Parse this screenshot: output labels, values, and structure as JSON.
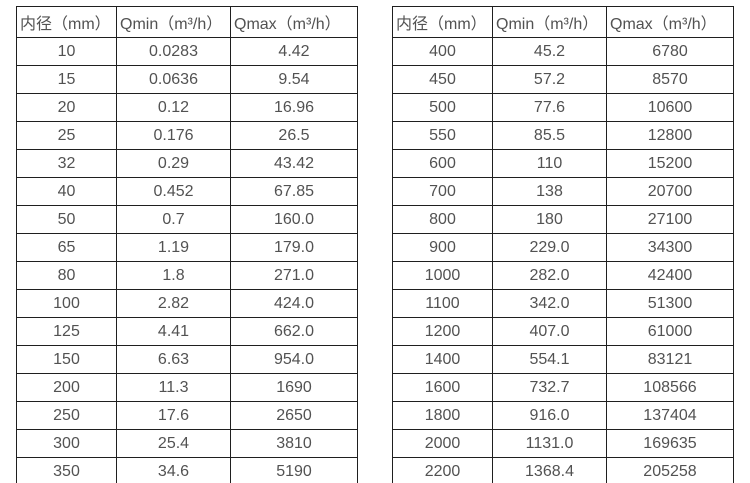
{
  "colors": {
    "background": "#ffffff",
    "text": "#525252",
    "border": "#1f1f1f"
  },
  "tables": [
    {
      "name": "flow-spec-table-small-diameters",
      "headers": [
        "内径（mm）",
        "Qmin（m³/h）",
        "Qmax（m³/h）"
      ],
      "rows": [
        [
          "10",
          "0.0283",
          "4.42"
        ],
        [
          "15",
          "0.0636",
          "9.54"
        ],
        [
          "20",
          "0.12",
          "16.96"
        ],
        [
          "25",
          "0.176",
          "26.5"
        ],
        [
          "32",
          "0.29",
          "43.42"
        ],
        [
          "40",
          "0.452",
          "67.85"
        ],
        [
          "50",
          "0.7",
          "160.0"
        ],
        [
          "65",
          "1.19",
          "179.0"
        ],
        [
          "80",
          "1.8",
          "271.0"
        ],
        [
          "100",
          "2.82",
          "424.0"
        ],
        [
          "125",
          "4.41",
          "662.0"
        ],
        [
          "150",
          "6.63",
          "954.0"
        ],
        [
          "200",
          "11.3",
          "1690"
        ],
        [
          "250",
          "17.6",
          "2650"
        ],
        [
          "300",
          "25.4",
          "3810"
        ],
        [
          "350",
          "34.6",
          "5190"
        ]
      ]
    },
    {
      "name": "flow-spec-table-large-diameters",
      "headers": [
        "内径（mm）",
        "Qmin（m³/h）",
        "Qmax（m³/h）"
      ],
      "rows": [
        [
          "400",
          "45.2",
          "6780"
        ],
        [
          "450",
          "57.2",
          "8570"
        ],
        [
          "500",
          "77.6",
          "10600"
        ],
        [
          "550",
          "85.5",
          "12800"
        ],
        [
          "600",
          "110",
          "15200"
        ],
        [
          "700",
          "138",
          "20700"
        ],
        [
          "800",
          "180",
          "27100"
        ],
        [
          "900",
          "229.0",
          "34300"
        ],
        [
          "1000",
          "282.0",
          "42400"
        ],
        [
          "1100",
          "342.0",
          "51300"
        ],
        [
          "1200",
          "407.0",
          "61000"
        ],
        [
          "1400",
          "554.1",
          "83121"
        ],
        [
          "1600",
          "732.7",
          "108566"
        ],
        [
          "1800",
          "916.0",
          "137404"
        ],
        [
          "2000",
          "1131.0",
          "169635"
        ],
        [
          "2200",
          "1368.4",
          "205258"
        ]
      ]
    }
  ],
  "chart_data": [
    {
      "type": "table",
      "title": "",
      "columns": [
        "内径（mm）",
        "Qmin（m³/h）",
        "Qmax（m³/h）"
      ],
      "rows": [
        [
          10,
          0.0283,
          4.42
        ],
        [
          15,
          0.0636,
          9.54
        ],
        [
          20,
          0.12,
          16.96
        ],
        [
          25,
          0.176,
          26.5
        ],
        [
          32,
          0.29,
          43.42
        ],
        [
          40,
          0.452,
          67.85
        ],
        [
          50,
          0.7,
          160.0
        ],
        [
          65,
          1.19,
          179.0
        ],
        [
          80,
          1.8,
          271.0
        ],
        [
          100,
          2.82,
          424.0
        ],
        [
          125,
          4.41,
          662.0
        ],
        [
          150,
          6.63,
          954.0
        ],
        [
          200,
          11.3,
          1690
        ],
        [
          250,
          17.6,
          2650
        ],
        [
          300,
          25.4,
          3810
        ],
        [
          350,
          34.6,
          5190
        ]
      ]
    },
    {
      "type": "table",
      "title": "",
      "columns": [
        "内径（mm）",
        "Qmin（m³/h）",
        "Qmax（m³/h）"
      ],
      "rows": [
        [
          400,
          45.2,
          6780
        ],
        [
          450,
          57.2,
          8570
        ],
        [
          500,
          77.6,
          10600
        ],
        [
          550,
          85.5,
          12800
        ],
        [
          600,
          110,
          15200
        ],
        [
          700,
          138,
          20700
        ],
        [
          800,
          180,
          27100
        ],
        [
          900,
          229.0,
          34300
        ],
        [
          1000,
          282.0,
          42400
        ],
        [
          1100,
          342.0,
          51300
        ],
        [
          1200,
          407.0,
          61000
        ],
        [
          1400,
          554.1,
          83121
        ],
        [
          1600,
          732.7,
          108566
        ],
        [
          1800,
          916.0,
          137404
        ],
        [
          2000,
          1131.0,
          169635
        ],
        [
          2200,
          1368.4,
          205258
        ]
      ]
    }
  ]
}
